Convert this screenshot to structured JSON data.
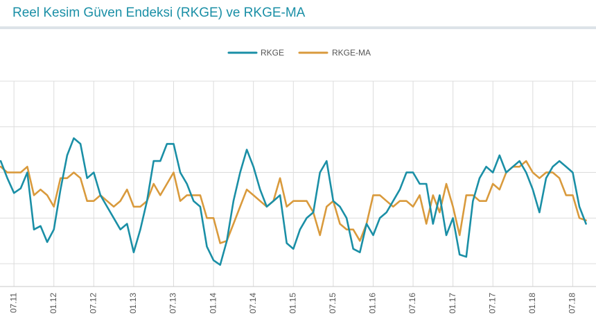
{
  "header": {
    "title": "Reel Kesim Güven Endeksi (RKGE) ve RKGE-MA"
  },
  "chart_data": {
    "type": "line",
    "title": "Reel Kesim Güven Endeksi (RKGE) ve RKGE-MA",
    "xlabel": "",
    "ylabel": "",
    "legend_position": "top-center",
    "grid": true,
    "ylim": [
      96,
      114
    ],
    "xlim": [
      -14.1,
      75.5
    ],
    "yticks": [
      98,
      102,
      106,
      110
    ],
    "x_tick_positions": [
      -12,
      -6,
      0,
      6,
      12,
      18,
      24,
      30,
      36,
      42,
      48,
      54,
      60,
      66,
      72
    ],
    "x_tick_labels": [
      "07.11",
      "01.12",
      "07.12",
      "01.13",
      "07.13",
      "01.14",
      "07.14",
      "01.15",
      "07.15",
      "01.16",
      "07.16",
      "01.17",
      "07.17",
      "01.18",
      "07.18"
    ],
    "x_unit": "months since 01.12",
    "series": [
      {
        "name": "RKGE",
        "color": "#1a8fa6",
        "points": [
          [
            -14,
            107
          ],
          [
            -13,
            105.5
          ],
          [
            -12,
            104.2
          ],
          [
            -11,
            104.6
          ],
          [
            -10,
            106
          ],
          [
            -9,
            101
          ],
          [
            -8,
            101.3
          ],
          [
            -7,
            99.9
          ],
          [
            -6,
            101
          ],
          [
            -5,
            104.5
          ],
          [
            -4,
            107.5
          ],
          [
            -3,
            109
          ],
          [
            -2,
            108.5
          ],
          [
            -1,
            105.5
          ],
          [
            0,
            106
          ],
          [
            1,
            104
          ],
          [
            2,
            103
          ],
          [
            3,
            102
          ],
          [
            4,
            101
          ],
          [
            5,
            101.5
          ],
          [
            6,
            99
          ],
          [
            7,
            101
          ],
          [
            8,
            103.5
          ],
          [
            9,
            107
          ],
          [
            10,
            107
          ],
          [
            11,
            108.5
          ],
          [
            12,
            108.5
          ],
          [
            13,
            106
          ],
          [
            14,
            105
          ],
          [
            15,
            103.5
          ],
          [
            16,
            103
          ],
          [
            17,
            99.5
          ],
          [
            18,
            98.3
          ],
          [
            19,
            97.9
          ],
          [
            20,
            100
          ],
          [
            21,
            103.5
          ],
          [
            22,
            106
          ],
          [
            23,
            108
          ],
          [
            24,
            106.5
          ],
          [
            25,
            104.5
          ],
          [
            26,
            103
          ],
          [
            27,
            103.5
          ],
          [
            28,
            104
          ],
          [
            29,
            99.8
          ],
          [
            30,
            99.3
          ],
          [
            31,
            101
          ],
          [
            32,
            102
          ],
          [
            33,
            102.5
          ],
          [
            34,
            106
          ],
          [
            35,
            107
          ],
          [
            36,
            103.5
          ],
          [
            37,
            103
          ],
          [
            38,
            102
          ],
          [
            39,
            99.3
          ],
          [
            40,
            99
          ],
          [
            41,
            101.5
          ],
          [
            42,
            100.5
          ],
          [
            43,
            102
          ],
          [
            44,
            102.5
          ],
          [
            45,
            103.5
          ],
          [
            46,
            104.5
          ],
          [
            47,
            106
          ],
          [
            48,
            106
          ],
          [
            49,
            105
          ],
          [
            50,
            105
          ],
          [
            51,
            101.5
          ],
          [
            52,
            104
          ],
          [
            53,
            100.5
          ],
          [
            54,
            102
          ],
          [
            55,
            98.8
          ],
          [
            56,
            98.6
          ],
          [
            57,
            103.5
          ],
          [
            58,
            105.5
          ],
          [
            59,
            106.5
          ],
          [
            60,
            106
          ],
          [
            61,
            107.5
          ],
          [
            62,
            106
          ],
          [
            63,
            106.5
          ],
          [
            64,
            107
          ],
          [
            65,
            106
          ],
          [
            66,
            104.5
          ],
          [
            67,
            102.5
          ],
          [
            68,
            105.5
          ],
          [
            69,
            106.5
          ],
          [
            70,
            107
          ],
          [
            71,
            106.5
          ],
          [
            72,
            106
          ],
          [
            73,
            103
          ],
          [
            74,
            101.5
          ]
        ]
      },
      {
        "name": "RKGE-MA",
        "color": "#d99a3c",
        "points": [
          [
            -14,
            106.5
          ],
          [
            -13,
            106
          ],
          [
            -12,
            106
          ],
          [
            -11,
            106
          ],
          [
            -10,
            106.5
          ],
          [
            -9,
            104
          ],
          [
            -8,
            104.5
          ],
          [
            -7,
            104
          ],
          [
            -6,
            103
          ],
          [
            -5,
            105.5
          ],
          [
            -4,
            105.5
          ],
          [
            -3,
            106
          ],
          [
            -2,
            105.5
          ],
          [
            -1,
            103.5
          ],
          [
            0,
            103.5
          ],
          [
            1,
            104
          ],
          [
            2,
            103.5
          ],
          [
            3,
            103
          ],
          [
            4,
            103.5
          ],
          [
            5,
            104.5
          ],
          [
            6,
            103
          ],
          [
            7,
            103
          ],
          [
            8,
            103.5
          ],
          [
            9,
            105
          ],
          [
            10,
            104
          ],
          [
            11,
            105
          ],
          [
            12,
            106
          ],
          [
            13,
            103.5
          ],
          [
            14,
            104
          ],
          [
            15,
            104
          ],
          [
            16,
            104
          ],
          [
            17,
            102
          ],
          [
            18,
            102
          ],
          [
            19,
            99.8
          ],
          [
            20,
            100
          ],
          [
            21,
            101.5
          ],
          [
            22,
            103
          ],
          [
            23,
            104.5
          ],
          [
            24,
            104
          ],
          [
            25,
            103.5
          ],
          [
            26,
            103
          ],
          [
            27,
            103.5
          ],
          [
            28,
            105.5
          ],
          [
            29,
            103
          ],
          [
            30,
            103.5
          ],
          [
            31,
            103.5
          ],
          [
            32,
            103.5
          ],
          [
            33,
            102.5
          ],
          [
            34,
            100.5
          ],
          [
            35,
            103
          ],
          [
            36,
            103.5
          ],
          [
            37,
            101.5
          ],
          [
            38,
            101
          ],
          [
            39,
            101
          ],
          [
            40,
            100
          ],
          [
            41,
            101.5
          ],
          [
            42,
            104
          ],
          [
            43,
            104
          ],
          [
            44,
            103.5
          ],
          [
            45,
            103
          ],
          [
            46,
            103.5
          ],
          [
            47,
            103.5
          ],
          [
            48,
            103
          ],
          [
            49,
            104
          ],
          [
            50,
            101.5
          ],
          [
            51,
            104
          ],
          [
            52,
            102.5
          ],
          [
            53,
            105
          ],
          [
            54,
            103
          ],
          [
            55,
            100.5
          ],
          [
            56,
            104
          ],
          [
            57,
            104
          ],
          [
            58,
            103.5
          ],
          [
            59,
            103.5
          ],
          [
            60,
            105
          ],
          [
            61,
            104.5
          ],
          [
            62,
            106
          ],
          [
            63,
            106.5
          ],
          [
            64,
            106.5
          ],
          [
            65,
            107
          ],
          [
            66,
            106
          ],
          [
            67,
            105.5
          ],
          [
            68,
            106
          ],
          [
            69,
            106
          ],
          [
            70,
            105.5
          ],
          [
            71,
            104
          ],
          [
            72,
            104
          ],
          [
            73,
            102
          ],
          [
            74,
            101.8
          ]
        ]
      }
    ]
  }
}
